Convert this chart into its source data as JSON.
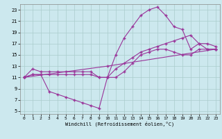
{
  "xlabel": "Windchill (Refroidissement éolien,°C)",
  "bg_color": "#cce8ee",
  "grid_color": "#aacccc",
  "line_color": "#993399",
  "xlim": [
    -0.5,
    23.5
  ],
  "ylim": [
    4.5,
    24
  ],
  "yticks": [
    5,
    7,
    9,
    11,
    13,
    15,
    17,
    19,
    21,
    23
  ],
  "xticks": [
    0,
    1,
    2,
    3,
    4,
    5,
    6,
    7,
    8,
    9,
    10,
    11,
    12,
    13,
    14,
    15,
    16,
    17,
    18,
    19,
    20,
    21,
    22,
    23
  ],
  "lines": [
    {
      "x": [
        0,
        1,
        2,
        3,
        4,
        5,
        6,
        7,
        8,
        9,
        10,
        11,
        12,
        13,
        14,
        15,
        16,
        17,
        18,
        19,
        20,
        21,
        22,
        23
      ],
      "y": [
        11,
        12.5,
        12,
        12,
        12,
        12,
        12,
        12,
        12,
        11,
        11,
        15,
        18,
        20,
        22,
        23,
        23.5,
        22,
        20,
        19.5,
        16,
        17,
        16,
        16
      ]
    },
    {
      "x": [
        0,
        1,
        2,
        3,
        4,
        5,
        6,
        7,
        8,
        9,
        10,
        11,
        12,
        13,
        14,
        15,
        16,
        17,
        18,
        19,
        20,
        21,
        22,
        23
      ],
      "y": [
        11,
        11.5,
        11.5,
        8.5,
        8,
        7.5,
        7,
        6.5,
        6,
        5.5,
        11,
        11,
        12,
        13.5,
        15,
        15.5,
        16,
        16,
        15.5,
        15,
        15,
        16,
        16,
        16
      ]
    },
    {
      "x": [
        0,
        1,
        2,
        3,
        4,
        5,
        6,
        7,
        8,
        9,
        10,
        11,
        12,
        13,
        14,
        15,
        16,
        17,
        18,
        19,
        20,
        21,
        22,
        23
      ],
      "y": [
        11,
        11.5,
        11.5,
        11.5,
        11.5,
        11.5,
        11.5,
        11.5,
        11.5,
        11,
        11,
        12.5,
        13.5,
        14.5,
        15.5,
        16,
        16.5,
        17,
        17.5,
        18,
        18.5,
        17,
        17,
        16.5
      ]
    },
    {
      "x": [
        0,
        10,
        23
      ],
      "y": [
        11,
        13,
        16
      ]
    }
  ]
}
